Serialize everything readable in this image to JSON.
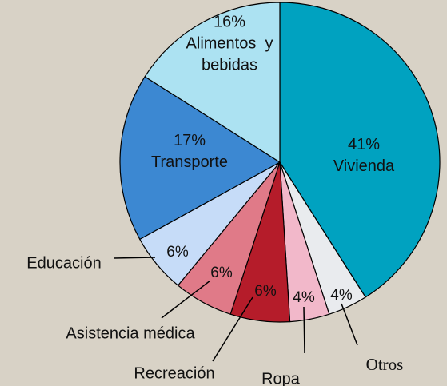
{
  "chart_data": {
    "type": "pie",
    "title": "",
    "slices": [
      {
        "key": "vivienda",
        "percent": 41,
        "value_label": "41%",
        "name_lines": [
          "Vivienda"
        ],
        "color": "#00a2c0",
        "label_placement": "inside"
      },
      {
        "key": "otros",
        "percent": 4,
        "value_label": "4%",
        "name_lines": [
          "Otros"
        ],
        "color": "#e9ebee",
        "label_placement": "outside"
      },
      {
        "key": "ropa",
        "percent": 4,
        "value_label": "4%",
        "name_lines": [
          "Ropa"
        ],
        "color": "#f2b8ca",
        "label_placement": "outside"
      },
      {
        "key": "recreacion",
        "percent": 6,
        "value_label": "6%",
        "name_lines": [
          "Recreación"
        ],
        "color": "#b51c2a",
        "label_placement": "outside"
      },
      {
        "key": "asistencia",
        "percent": 6,
        "value_label": "6%",
        "name_lines": [
          "Asistencia médica"
        ],
        "color": "#e07a88",
        "label_placement": "outside"
      },
      {
        "key": "educacion",
        "percent": 6,
        "value_label": "6%",
        "name_lines": [
          "Educación"
        ],
        "color": "#c6dcf8",
        "label_placement": "outside"
      },
      {
        "key": "transporte",
        "percent": 17,
        "value_label": "17%",
        "name_lines": [
          "Transporte"
        ],
        "color": "#3c88d2",
        "label_placement": "inside"
      },
      {
        "key": "alimentos",
        "percent": 16,
        "value_label": "16%",
        "name_lines": [
          "Alimentos  y",
          "bebidas"
        ],
        "color": "#ace2f2",
        "label_placement": "inside"
      }
    ],
    "start_at": "top",
    "direction": "clockwise",
    "legend": "none"
  }
}
